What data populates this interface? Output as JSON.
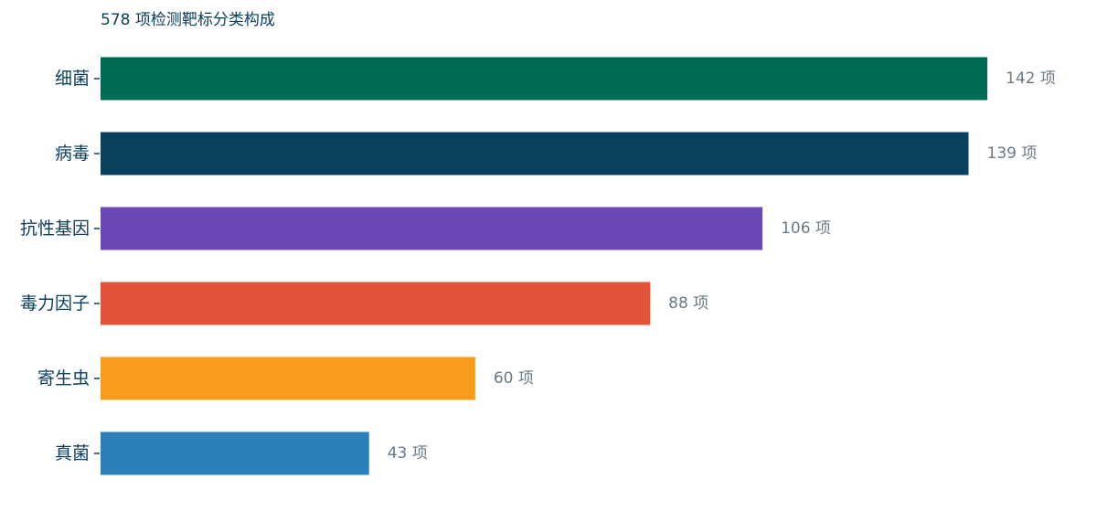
{
  "chart_data": {
    "type": "bar",
    "orientation": "horizontal",
    "subtitle": "578 项检测靶标分类构成",
    "categories": [
      "细菌",
      "病毒",
      "抗性基因",
      "毒力因子",
      "寄生虫",
      "真菌"
    ],
    "values": [
      142,
      139,
      106,
      88,
      60,
      43
    ],
    "value_suffix": " 项",
    "colors": [
      "#006b54",
      "#0b405e",
      "#6a48b6",
      "#e2533a",
      "#f99b1c",
      "#2b80b9"
    ],
    "xlim": [
      0,
      142
    ],
    "grid": false,
    "legend": "none"
  }
}
